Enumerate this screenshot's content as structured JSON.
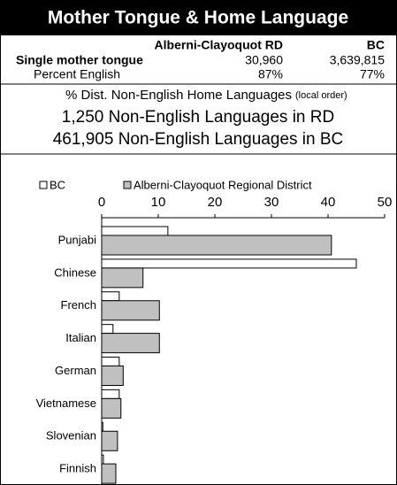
{
  "header": {
    "title": "Mother Tongue & Home Language"
  },
  "table": {
    "columns": [
      "Alberni-Clayoquot RD",
      "BC"
    ],
    "rows": [
      [
        "Single mother tongue",
        "30,960",
        "3,639,815"
      ],
      [
        "Percent English",
        "87%",
        "77%"
      ]
    ]
  },
  "summary": {
    "heading": "% Dist. Non-English Home Languages",
    "note": "(local order)",
    "lines": [
      "1,250 Non-English Languages in RD",
      "461,905 Non-English Languages in BC"
    ]
  },
  "chart_data": {
    "type": "hbar",
    "categories": [
      "Punjabi",
      "Chinese",
      "French",
      "Italian",
      "German",
      "Vietnamese",
      "Slovenian",
      "Finnish"
    ],
    "series": [
      {
        "name": "BC",
        "color": "#ffffff",
        "values": [
          11.7,
          45,
          3.1,
          2,
          3.1,
          3.1,
          0.2,
          0.3
        ]
      },
      {
        "name": "Alberni-Clayoquot Regional District",
        "color": "#c0c0c0",
        "values": [
          40.6,
          7.3,
          10.2,
          10.2,
          3.8,
          3.4,
          2.8,
          2.5
        ]
      }
    ],
    "xlim": [
      0,
      50
    ],
    "xticks": [
      0,
      10,
      20,
      30,
      40,
      50
    ],
    "legend": "top"
  }
}
